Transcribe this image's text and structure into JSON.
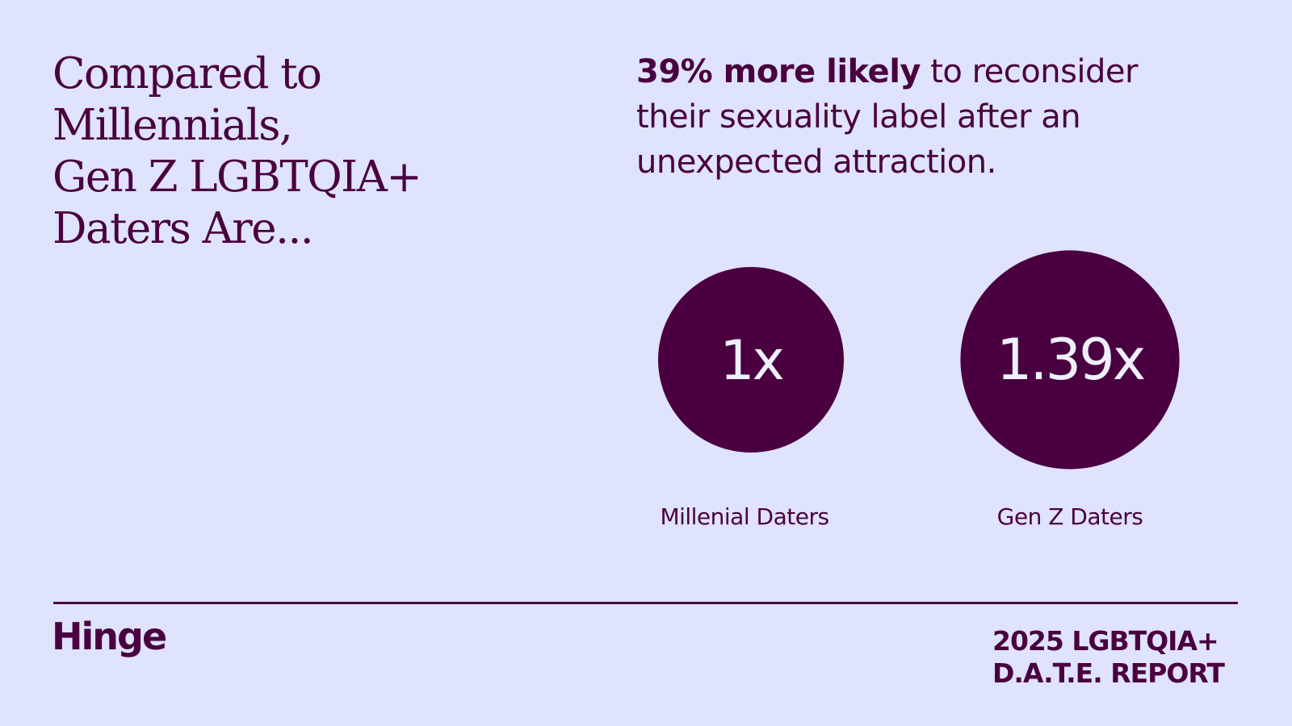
{
  "headline": {
    "line1": "Compared to",
    "line2": "Millennials,",
    "line3": "Gen Z LGBTQIA+",
    "line4": "Daters Are..."
  },
  "stat": {
    "highlight": "39% more likely",
    "rest_line1": " to reconsider",
    "line2": "their sexuality label after an",
    "line3": "unexpected attraction."
  },
  "colors": {
    "background": "#dfe3fd",
    "accent": "#4a0040",
    "bubble_text": "#eef0ff"
  },
  "chart_data": {
    "type": "bubble",
    "categories": [
      "Millenial Daters",
      "Gen Z Daters"
    ],
    "values": [
      1,
      1.39
    ],
    "value_labels": [
      "1x",
      "1.39x"
    ],
    "title": "",
    "xlabel": "",
    "ylabel": "",
    "grid": false,
    "legend": "none"
  },
  "footer": {
    "logo": "Hinge",
    "report_line1": "2025 LGBTQIA+",
    "report_line2": "D.A.T.E. REPORT"
  }
}
